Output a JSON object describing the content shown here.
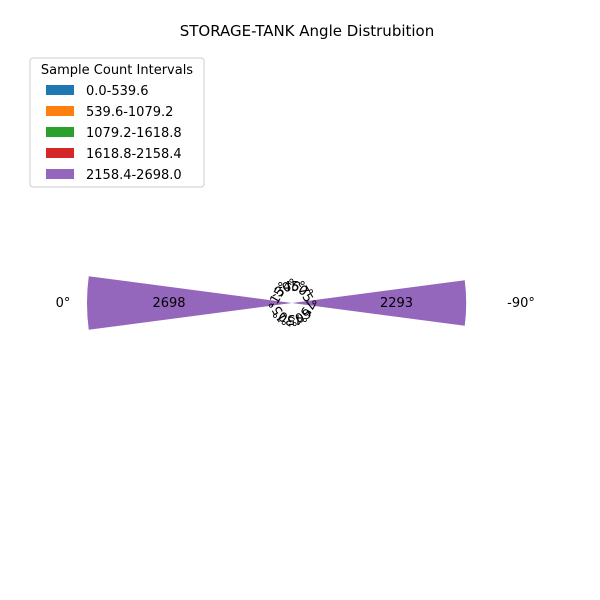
{
  "chart_data": {
    "type": "polar-bar",
    "title": "STORAGE-TANK Angle Distrubition",
    "legend": {
      "title": "Sample Count Intervals",
      "placement": "upper-left",
      "entries": [
        {
          "label": "0.0-539.6",
          "color": "#1f77b4"
        },
        {
          "label": "539.6-1079.2",
          "color": "#ff7f0e"
        },
        {
          "label": "1079.2-1618.8",
          "color": "#2ca02c"
        },
        {
          "label": "1618.8-2158.4",
          "color": "#d62728"
        },
        {
          "label": "2158.4-2698.0",
          "color": "#9467bd"
        }
      ]
    },
    "angle_ticks": [
      "0°",
      "15°",
      "30°",
      "45°",
      "60°",
      "75°",
      "-90°",
      "-75°",
      "-60°",
      "-45°",
      "-30°",
      "-15°"
    ],
    "bars": [
      {
        "angle": 0,
        "value": 2698,
        "label": "2698",
        "color": "#9467bd"
      },
      {
        "angle": -90,
        "value": 2293,
        "label": "2293",
        "color": "#9467bd"
      }
    ],
    "max_value": 2698,
    "grid": false
  }
}
